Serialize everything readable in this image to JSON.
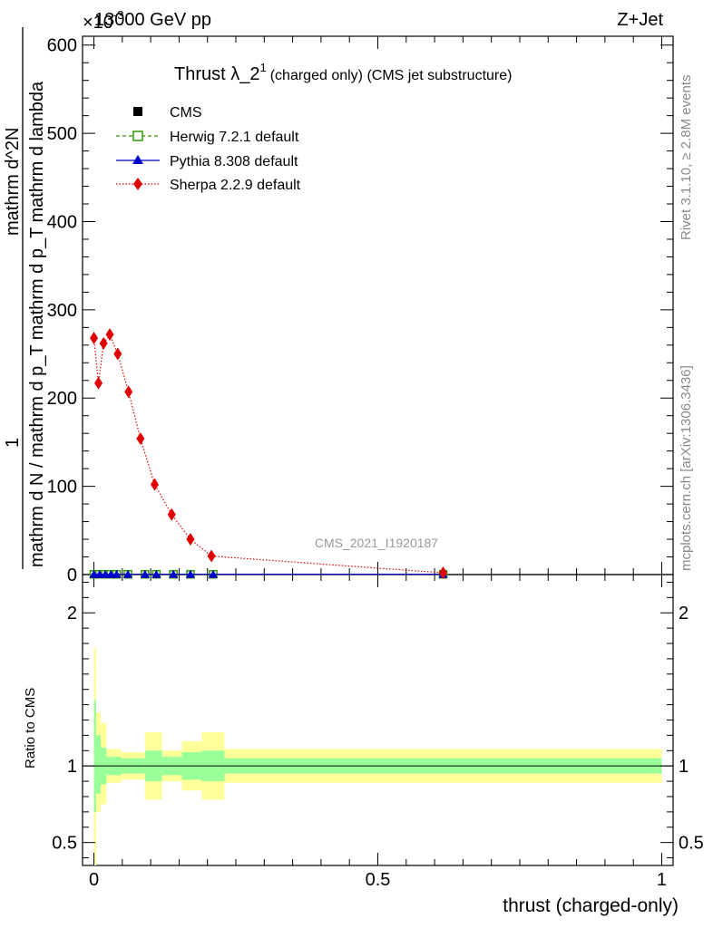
{
  "header": {
    "left": "13000 GeV pp",
    "right": "Z+Jet",
    "exponent_base": "×10",
    "exponent_power": "-3"
  },
  "title": {
    "main": "Thrust λ_2",
    "superscript": "1",
    "sub": "(charged only) (CMS jet substructure)"
  },
  "side_labels": {
    "right_top": "Rivet 3.1.10, ≥ 2.8M events",
    "right_bottom": "mcplots.cern.ch [arXiv:1306.3436]"
  },
  "watermark": "CMS_2021_I1920187",
  "ylabel_main": {
    "numerator": "1",
    "denominator": "mathrm d N / mathrm d p_T mathrm d p_T mathrm d lambda",
    "top_part": "mathrm d^2N"
  },
  "ylabel_ratio": "Ratio to CMS",
  "xlabel": "thrust (charged-only)",
  "colors": {
    "herwig": "#339900",
    "pythia": "#0000cc",
    "sherpa": "#e00000",
    "band_inner": "#99ff99",
    "band_outer": "#ffff99"
  },
  "chart_data": [
    {
      "type": "line",
      "panel": "main",
      "xlim": [
        -0.02,
        1.02
      ],
      "ylim": [
        0,
        610
      ],
      "y_scale_note": "×10^-3",
      "yticks": [
        0,
        100,
        200,
        300,
        400,
        500,
        600
      ],
      "ytick_labels": [
        "0",
        "100",
        "200",
        "300",
        "400",
        "500",
        "600"
      ],
      "legend": [
        "CMS",
        "Herwig 7.2.1 default",
        "Pythia 8.308 default",
        "Sherpa 2.2.9 default"
      ],
      "legend_position": "top-left",
      "series": [
        {
          "name": "CMS",
          "x": [
            0.0,
            0.01,
            0.02,
            0.03,
            0.04,
            0.06,
            0.09,
            0.11,
            0.14,
            0.17,
            0.21,
            0.615
          ],
          "y": [
            0.3,
            0.3,
            0.3,
            0.3,
            0.3,
            0.3,
            0.3,
            0.3,
            0.3,
            0.3,
            0.3,
            0.3
          ]
        },
        {
          "name": "Herwig 7.2.1 default",
          "x": [
            0.0,
            0.01,
            0.02,
            0.03,
            0.04,
            0.06,
            0.09,
            0.11,
            0.14,
            0.17,
            0.21,
            0.615
          ],
          "y": [
            0.3,
            0.3,
            0.3,
            0.3,
            0.3,
            0.3,
            0.3,
            0.3,
            0.3,
            0.3,
            0.3,
            0.3
          ]
        },
        {
          "name": "Pythia 8.308 default",
          "x": [
            0.0,
            0.01,
            0.02,
            0.03,
            0.04,
            0.06,
            0.09,
            0.11,
            0.14,
            0.17,
            0.21,
            0.615
          ],
          "y": [
            0.3,
            0.3,
            0.3,
            0.3,
            0.3,
            0.3,
            0.3,
            0.3,
            0.3,
            0.3,
            0.3,
            0.3
          ]
        },
        {
          "name": "Sherpa 2.2.9 default",
          "x": [
            0.0,
            0.008,
            0.017,
            0.028,
            0.042,
            0.061,
            0.082,
            0.107,
            0.137,
            0.17,
            0.207,
            0.615
          ],
          "y": [
            268,
            217,
            262,
            272,
            250,
            207,
            154,
            102,
            68,
            40,
            21,
            2
          ]
        }
      ]
    },
    {
      "type": "area",
      "panel": "ratio",
      "xlim": [
        -0.02,
        1.02
      ],
      "ylim": [
        0.35,
        2.25
      ],
      "yticks": [
        0.5,
        1,
        2
      ],
      "ytick_labels": [
        "0.5",
        "1",
        "2"
      ],
      "xticks": [
        0,
        0.5,
        1
      ],
      "xtick_labels": [
        "0",
        "0.5",
        "1"
      ],
      "bins": [
        {
          "x0": 0.0,
          "x1": 0.004,
          "inner": [
            0.7,
            1.43
          ],
          "outer": [
            0.35,
            1.77
          ]
        },
        {
          "x0": 0.004,
          "x1": 0.012,
          "inner": [
            0.82,
            1.2
          ],
          "outer": [
            0.7,
            1.35
          ]
        },
        {
          "x0": 0.012,
          "x1": 0.022,
          "inner": [
            0.88,
            1.12
          ],
          "outer": [
            0.75,
            1.28
          ]
        },
        {
          "x0": 0.022,
          "x1": 0.048,
          "inner": [
            0.94,
            1.06
          ],
          "outer": [
            0.89,
            1.11
          ]
        },
        {
          "x0": 0.048,
          "x1": 0.09,
          "inner": [
            0.95,
            1.05
          ],
          "outer": [
            0.91,
            1.09
          ]
        },
        {
          "x0": 0.09,
          "x1": 0.12,
          "inner": [
            0.9,
            1.1
          ],
          "outer": [
            0.78,
            1.22
          ]
        },
        {
          "x0": 0.12,
          "x1": 0.155,
          "inner": [
            0.94,
            1.06
          ],
          "outer": [
            0.9,
            1.1
          ]
        },
        {
          "x0": 0.155,
          "x1": 0.19,
          "inner": [
            0.91,
            1.09
          ],
          "outer": [
            0.84,
            1.16
          ]
        },
        {
          "x0": 0.19,
          "x1": 0.23,
          "inner": [
            0.9,
            1.1
          ],
          "outer": [
            0.78,
            1.22
          ]
        },
        {
          "x0": 0.23,
          "x1": 1.0,
          "inner": [
            0.95,
            1.05
          ],
          "outer": [
            0.89,
            1.11
          ]
        }
      ]
    }
  ]
}
